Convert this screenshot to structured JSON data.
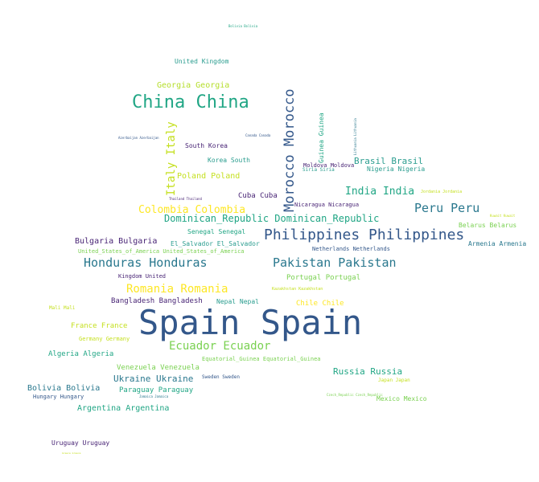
{
  "colors": {
    "background": "#ffffff",
    "palette": [
      "#33578a",
      "#2a788e",
      "#21a685",
      "#7ad151",
      "#c5e021",
      "#fde725",
      "#482475"
    ]
  },
  "words": [
    {
      "text": "Bolivia Bolivia",
      "color": "#21a685"
    },
    {
      "text": "United Kingdom",
      "color": "#2a9d8f"
    },
    {
      "text": "Georgia Georgia",
      "color": "#b5de2b"
    },
    {
      "text": "China China",
      "color": "#21a685"
    },
    {
      "text": "Morocco Morocco",
      "color": "#33578a"
    },
    {
      "text": "Guinea Guinea",
      "color": "#21a685"
    },
    {
      "text": "Lithuania Lithuania",
      "color": "#2a788e"
    },
    {
      "text": "Italy Italy",
      "color": "#c5e021"
    },
    {
      "text": "Azerbaijan Azerbaijan",
      "color": "#33578a"
    },
    {
      "text": "Canada Canada",
      "color": "#33578a"
    },
    {
      "text": "South Korea",
      "color": "#482475"
    },
    {
      "text": "Korea South",
      "color": "#2a9d8f"
    },
    {
      "text": "Brasil Brasil",
      "color": "#2a9d8f"
    },
    {
      "text": "Moldova Moldova",
      "color": "#482475"
    },
    {
      "text": "Siria Siria",
      "color": "#2a9d8f"
    },
    {
      "text": "Nigeria Nigeria",
      "color": "#2a9d8f"
    },
    {
      "text": "Poland Poland",
      "color": "#c5e021"
    },
    {
      "text": "India India",
      "color": "#21a685"
    },
    {
      "text": "Jordania Jordania",
      "color": "#c5e021"
    },
    {
      "text": "Thailand Thailand",
      "color": "#482475"
    },
    {
      "text": "Cuba Cuba",
      "color": "#482475"
    },
    {
      "text": "Nicaragua Nicaragua",
      "color": "#482475"
    },
    {
      "text": "Peru Peru",
      "color": "#2a788e"
    },
    {
      "text": "Colombia Colombia",
      "color": "#fde725"
    },
    {
      "text": "Dominican_Republic Dominican_Republic",
      "color": "#21a685"
    },
    {
      "text": "Kuwait Kuwait",
      "color": "#c5e021"
    },
    {
      "text": "Belarus Belarus",
      "color": "#7ad151"
    },
    {
      "text": "Senegal Senegal",
      "color": "#21a685"
    },
    {
      "text": "Philippines Philippines",
      "color": "#33578a"
    },
    {
      "text": "Armenia Armenia",
      "color": "#2a788e"
    },
    {
      "text": "Bulgaria Bulgaria",
      "color": "#482475"
    },
    {
      "text": "El_Salvador El_Salvador",
      "color": "#2a9d8f"
    },
    {
      "text": "United_States_of_America United_States_of_America",
      "color": "#7ad151"
    },
    {
      "text": "Netherlands Netherlands",
      "color": "#33578a"
    },
    {
      "text": "Honduras Honduras",
      "color": "#2a788e"
    },
    {
      "text": "Pakistan Pakistan",
      "color": "#2a788e"
    },
    {
      "text": "Kingdom United",
      "color": "#482475"
    },
    {
      "text": "Portugal Portugal",
      "color": "#7ad151"
    },
    {
      "text": "Romania Romania",
      "color": "#fde725"
    },
    {
      "text": "Kazakhstan Kazakhstan",
      "color": "#c5e021"
    },
    {
      "text": "Bangladesh Bangladesh",
      "color": "#482475"
    },
    {
      "text": "Nepal Nepal",
      "color": "#2a9d8f"
    },
    {
      "text": "Chile Chile",
      "color": "#fde725"
    },
    {
      "text": "Mali Mali",
      "color": "#c5e021"
    },
    {
      "text": "Spain Spain",
      "color": "#33578a"
    },
    {
      "text": "France France",
      "color": "#c5e021"
    },
    {
      "text": "Germany Germany",
      "color": "#c5e021"
    },
    {
      "text": "Ecuador Ecuador",
      "color": "#7ad151"
    },
    {
      "text": "Algeria Algeria",
      "color": "#21a685"
    },
    {
      "text": "Equatorial_Guinea Equatorial_Guinea",
      "color": "#7ad151"
    },
    {
      "text": "Venezuela Venezuela",
      "color": "#7ad151"
    },
    {
      "text": "Russia Russia",
      "color": "#21a685"
    },
    {
      "text": "Ukraine Ukraine",
      "color": "#2a788e"
    },
    {
      "text": "Sweden Sweden",
      "color": "#33578a"
    },
    {
      "text": "Japan Japan",
      "color": "#c5e021"
    },
    {
      "text": "Bolivia Bolivia",
      "color": "#2a788e"
    },
    {
      "text": "Paraguay Paraguay",
      "color": "#21a685"
    },
    {
      "text": "Hungary Hungary",
      "color": "#33578a"
    },
    {
      "text": "Jamaica Jamaica",
      "color": "#2a788e"
    },
    {
      "text": "Czech_Republic Czech_Republic",
      "color": "#7ad151"
    },
    {
      "text": "Mexico Mexico",
      "color": "#7ad151"
    },
    {
      "text": "Argentina Argentina",
      "color": "#21a685"
    },
    {
      "text": "Uruguay Uruguay",
      "color": "#482475"
    },
    {
      "text": "Greece Greece",
      "color": "#c5e021"
    }
  ]
}
